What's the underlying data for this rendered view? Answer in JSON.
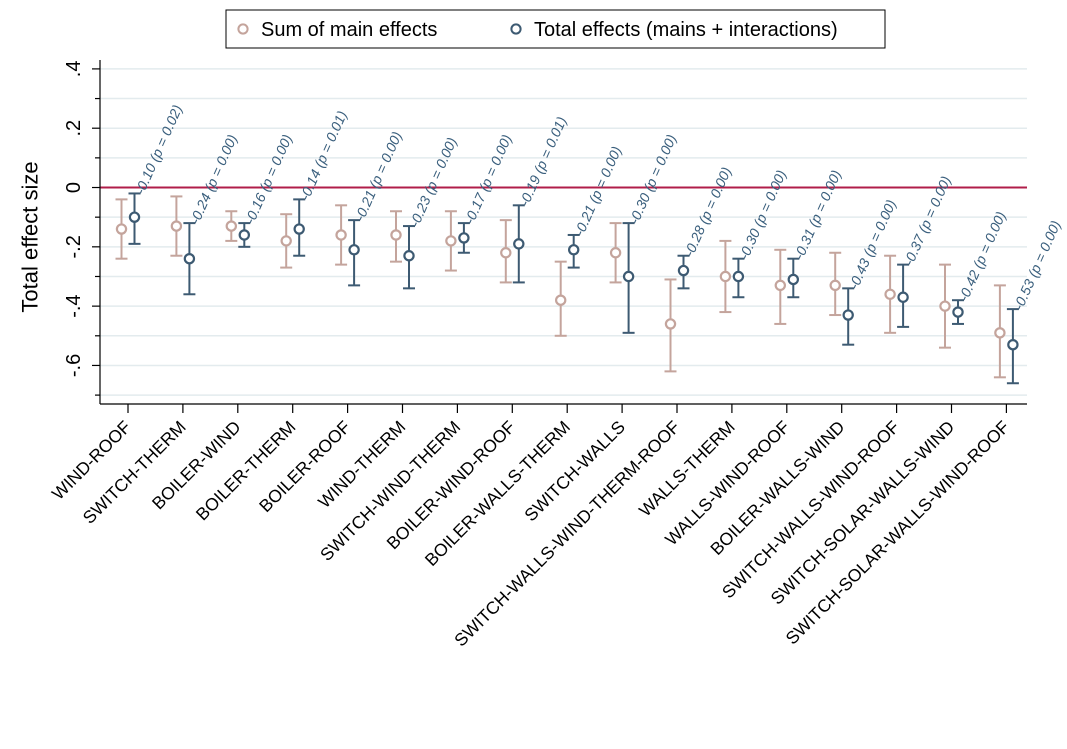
{
  "chart_data": {
    "type": "scatter",
    "ylabel": "Total effect size",
    "ylim": [
      -0.73,
      0.43
    ],
    "yticks": [
      0.4,
      0.2,
      0,
      -0.2,
      -0.4,
      -0.6
    ],
    "ytick_labels": [
      ".4",
      ".2",
      "0",
      "-.2",
      "-.4",
      "-.6"
    ],
    "ygrid": [
      0.4,
      0.3,
      0.2,
      0.1,
      0,
      -0.1,
      -0.2,
      -0.3,
      -0.4,
      -0.5,
      -0.6,
      -0.7
    ],
    "grid": true,
    "reference_line": 0,
    "legend_position": "top",
    "categories": [
      "WIND-ROOF",
      "SWITCH-THERM",
      "BOILER-WIND",
      "BOILER-THERM",
      "BOILER-ROOF",
      "WIND-THERM",
      "SWITCH-WIND-THERM",
      "BOILER-WIND-ROOF",
      "BOILER-WALLS-THERM",
      "SWITCH-WALLS",
      "SWITCH-WALLS-WIND-THERM-ROOF",
      "WALLS-THERM",
      "WALLS-WIND-ROOF",
      "BOILER-WALLS-WIND",
      "SWITCH-WALLS-WIND-ROOF",
      "SWITCH-SOLAR-WALLS-WIND",
      "SWITCH-SOLAR-WALLS-WIND-ROOF"
    ],
    "series": [
      {
        "name": "Sum of main effects",
        "color": "#c4a49c",
        "values": [
          -0.14,
          -0.13,
          -0.13,
          -0.18,
          -0.16,
          -0.16,
          -0.18,
          -0.22,
          -0.38,
          -0.22,
          -0.46,
          -0.3,
          -0.33,
          -0.33,
          -0.36,
          -0.4,
          -0.49
        ],
        "lower": [
          -0.24,
          -0.23,
          -0.18,
          -0.27,
          -0.26,
          -0.25,
          -0.28,
          -0.32,
          -0.5,
          -0.32,
          -0.62,
          -0.42,
          -0.46,
          -0.43,
          -0.49,
          -0.54,
          -0.64
        ],
        "upper": [
          -0.04,
          -0.03,
          -0.08,
          -0.09,
          -0.06,
          -0.08,
          -0.08,
          -0.11,
          -0.25,
          -0.12,
          -0.31,
          -0.18,
          -0.21,
          -0.22,
          -0.23,
          -0.26,
          -0.33
        ]
      },
      {
        "name": "Total effects (mains + interactions)",
        "color": "#3d5a72",
        "values": [
          -0.1,
          -0.24,
          -0.16,
          -0.14,
          -0.21,
          -0.23,
          -0.17,
          -0.19,
          -0.21,
          -0.3,
          -0.28,
          -0.3,
          -0.31,
          -0.43,
          -0.37,
          -0.42,
          -0.53
        ],
        "lower": [
          -0.19,
          -0.36,
          -0.2,
          -0.23,
          -0.33,
          -0.34,
          -0.22,
          -0.32,
          -0.27,
          -0.49,
          -0.34,
          -0.37,
          -0.37,
          -0.53,
          -0.47,
          -0.46,
          -0.66
        ],
        "upper": [
          -0.02,
          -0.12,
          -0.12,
          -0.04,
          -0.11,
          -0.13,
          -0.12,
          -0.06,
          -0.16,
          -0.12,
          -0.23,
          -0.24,
          -0.24,
          -0.34,
          -0.26,
          -0.38,
          -0.41
        ],
        "annotations": [
          "-0.10 (p = 0.02)",
          "-0.24 (p = 0.00)",
          "-0.16 (p = 0.00)",
          "-0.14 (p = 0.01)",
          "-0.21 (p = 0.00)",
          "-0.23 (p = 0.00)",
          "-0.17 (p = 0.00)",
          "-0.19 (p = 0.01)",
          "-0.21 (p = 0.00)",
          "-0.30 (p = 0.00)",
          "-0.28 (p = 0.00)",
          "-0.30 (p = 0.00)",
          "-0.31 (p = 0.00)",
          "-0.43 (p = 0.00)",
          "-0.37 (p = 0.00)",
          "-0.42 (p = 0.00)",
          "-0.53 (p = 0.00)"
        ]
      }
    ],
    "colors": {
      "grid": "#e3ebee",
      "reference": "#b01e4a",
      "axis": "#000000"
    }
  }
}
